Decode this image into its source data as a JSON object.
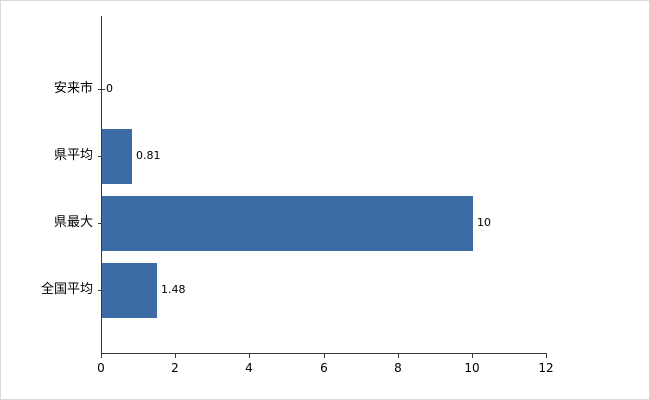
{
  "chart_data": {
    "type": "bar",
    "orientation": "horizontal",
    "title": "",
    "xlabel": "",
    "ylabel": "",
    "categories": [
      "安来市",
      "県平均",
      "県最大",
      "全国平均"
    ],
    "values": [
      0,
      0.81,
      10,
      1.48
    ],
    "value_labels": [
      "0",
      "0.81",
      "10",
      "1.48"
    ],
    "xlim": [
      0,
      12
    ],
    "xticks": [
      0,
      2,
      4,
      6,
      8,
      10,
      12
    ],
    "xtick_labels": [
      "0",
      "2",
      "4",
      "6",
      "8",
      "10",
      "12"
    ],
    "grid": false,
    "legend": "none",
    "bar_color": "#3c6ca6",
    "axis_color": "#3a3a3a",
    "text_color": "#000000",
    "background_color": "#ffffff"
  }
}
